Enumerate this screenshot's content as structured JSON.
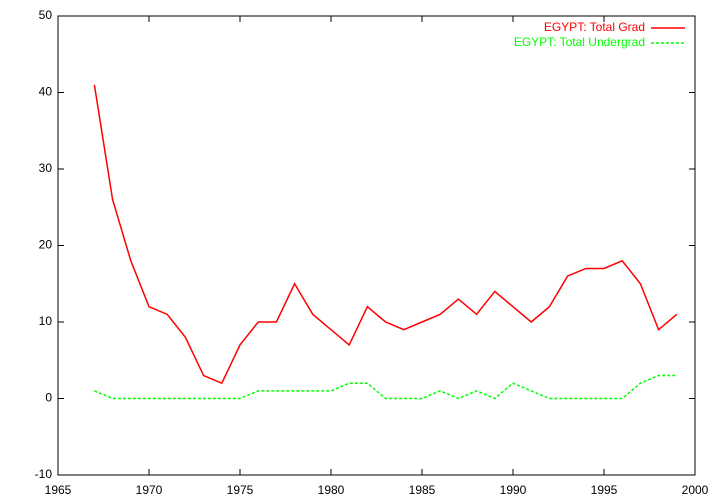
{
  "chart_data": {
    "type": "line",
    "x": [
      1967,
      1968,
      1969,
      1970,
      1971,
      1972,
      1973,
      1974,
      1975,
      1976,
      1977,
      1978,
      1979,
      1980,
      1981,
      1982,
      1983,
      1984,
      1985,
      1986,
      1987,
      1988,
      1989,
      1990,
      1991,
      1992,
      1993,
      1994,
      1995,
      1996,
      1997,
      1998,
      1999
    ],
    "series": [
      {
        "name": "EGYPT: Total Grad",
        "color": "#ff0000",
        "dash": false,
        "values": [
          41,
          26,
          18,
          12,
          11,
          8,
          3,
          2,
          7,
          10,
          10,
          15,
          11,
          9,
          7,
          12,
          10,
          9,
          10,
          11,
          13,
          11,
          14,
          12,
          10,
          12,
          16,
          17,
          17,
          18,
          15,
          9,
          11
        ]
      },
      {
        "name": "EGYPT: Total Undergrad",
        "color": "#00ff00",
        "dash": true,
        "values": [
          1,
          0,
          0,
          0,
          0,
          0,
          0,
          0,
          0,
          1,
          1,
          1,
          1,
          1,
          2,
          2,
          0,
          0,
          0,
          1,
          0,
          1,
          0,
          2,
          1,
          0,
          0,
          0,
          0,
          0,
          2,
          3,
          3
        ]
      }
    ],
    "xlim": [
      1965,
      2000
    ],
    "xticks": [
      1965,
      1970,
      1975,
      1980,
      1985,
      1990,
      1995,
      2000
    ],
    "ylim": [
      -10,
      50
    ],
    "yticks": [
      -10,
      0,
      10,
      20,
      30,
      40,
      50
    ],
    "legend": "top-right"
  }
}
